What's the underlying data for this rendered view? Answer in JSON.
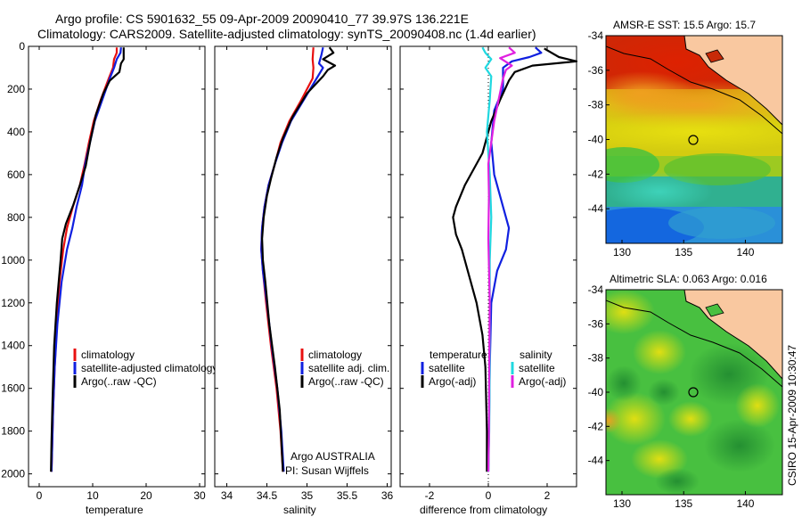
{
  "title": {
    "line1": "Argo profile: CS 5901632_55 09-Apr-2009 20090410_77 39.97S 136.221E",
    "line2": "Climatology: CARS2009. Satellite-adjusted climatology: synTS_20090408.nc (1.4d earlier)"
  },
  "colors": {
    "climatology": "#e81010",
    "satellite": "#1020e0",
    "argo": "#000000",
    "sat_salinity": "#20d8e0",
    "argo_salinity": "#e020e0"
  },
  "chart_data": [
    {
      "id": "temperature",
      "type": "line",
      "xlabel": "temperature",
      "xlim": [
        -2,
        31
      ],
      "xticks": [
        0,
        10,
        20,
        30
      ],
      "ylim": [
        2060,
        0
      ],
      "yticks": [
        0,
        200,
        400,
        600,
        800,
        1000,
        1200,
        1400,
        1600,
        1800,
        2000
      ],
      "legend": [
        "climatology",
        "satellite-adjusted climatology",
        "Argo(..raw -QC)"
      ],
      "series": [
        {
          "name": "climatology",
          "color": "#e81010",
          "points": [
            [
              14.5,
              5
            ],
            [
              14.5,
              30
            ],
            [
              14.0,
              60
            ],
            [
              13.8,
              100
            ],
            [
              13.0,
              150
            ],
            [
              11.5,
              250
            ],
            [
              10.2,
              350
            ],
            [
              9.3,
              450
            ],
            [
              8.5,
              550
            ],
            [
              7.6,
              650
            ],
            [
              6.3,
              750
            ],
            [
              5.2,
              850
            ],
            [
              4.5,
              950
            ],
            [
              3.8,
              1100
            ],
            [
              3.3,
              1300
            ],
            [
              2.9,
              1500
            ],
            [
              2.6,
              1700
            ],
            [
              2.4,
              1900
            ],
            [
              2.3,
              1990
            ]
          ]
        },
        {
          "name": "satellite-adjusted climatology",
          "color": "#1020e0",
          "points": [
            [
              15.3,
              5
            ],
            [
              15.2,
              30
            ],
            [
              14.5,
              60
            ],
            [
              14.0,
              100
            ],
            [
              13.2,
              150
            ],
            [
              11.8,
              250
            ],
            [
              10.4,
              350
            ],
            [
              9.5,
              450
            ],
            [
              8.6,
              550
            ],
            [
              8.0,
              650
            ],
            [
              7.0,
              750
            ],
            [
              6.2,
              850
            ],
            [
              5.2,
              950
            ],
            [
              4.2,
              1100
            ],
            [
              3.4,
              1300
            ],
            [
              2.9,
              1500
            ],
            [
              2.6,
              1700
            ],
            [
              2.4,
              1900
            ],
            [
              2.3,
              1990
            ]
          ]
        },
        {
          "name": "Argo(..raw -QC)",
          "color": "#000000",
          "points": [
            [
              15.8,
              5
            ],
            [
              15.8,
              60
            ],
            [
              15.3,
              80
            ],
            [
              15.0,
              120
            ],
            [
              13.2,
              160
            ],
            [
              12.0,
              220
            ],
            [
              10.6,
              320
            ],
            [
              9.5,
              450
            ],
            [
              8.7,
              560
            ],
            [
              7.6,
              650
            ],
            [
              6.4,
              740
            ],
            [
              5.0,
              830
            ],
            [
              4.3,
              900
            ],
            [
              4.0,
              1000
            ],
            [
              3.3,
              1200
            ],
            [
              2.8,
              1400
            ],
            [
              2.5,
              1650
            ],
            [
              2.3,
              1850
            ],
            [
              2.2,
              1990
            ]
          ]
        }
      ]
    },
    {
      "id": "salinity",
      "type": "line",
      "xlabel": "salinity",
      "xlim": [
        33.85,
        36.05
      ],
      "xticks": [
        34,
        34.5,
        35,
        35.5,
        36
      ],
      "ylim": [
        2060,
        0
      ],
      "legend": [
        "climatology",
        "satellite adj. clim.",
        "Argo(..raw -QC)"
      ],
      "annotations": [
        "Argo AUSTRALIA",
        "PI: Susan Wijffels"
      ],
      "series": [
        {
          "name": "climatology",
          "color": "#e81010",
          "points": [
            [
              35.08,
              5
            ],
            [
              35.07,
              60
            ],
            [
              35.08,
              100
            ],
            [
              35.07,
              150
            ],
            [
              34.93,
              250
            ],
            [
              34.78,
              350
            ],
            [
              34.67,
              450
            ],
            [
              34.6,
              550
            ],
            [
              34.52,
              650
            ],
            [
              34.47,
              750
            ],
            [
              34.44,
              850
            ],
            [
              34.43,
              950
            ],
            [
              34.45,
              1050
            ],
            [
              34.49,
              1200
            ],
            [
              34.55,
              1400
            ],
            [
              34.62,
              1600
            ],
            [
              34.67,
              1800
            ],
            [
              34.7,
              1990
            ]
          ]
        },
        {
          "name": "satellite adj. clim.",
          "color": "#1020e0",
          "points": [
            [
              35.2,
              5
            ],
            [
              35.18,
              40
            ],
            [
              35.15,
              80
            ],
            [
              35.2,
              100
            ],
            [
              35.12,
              150
            ],
            [
              34.96,
              250
            ],
            [
              34.8,
              350
            ],
            [
              34.69,
              450
            ],
            [
              34.6,
              550
            ],
            [
              34.52,
              650
            ],
            [
              34.47,
              750
            ],
            [
              34.44,
              850
            ],
            [
              34.43,
              950
            ],
            [
              34.45,
              1050
            ],
            [
              34.5,
              1200
            ],
            [
              34.56,
              1400
            ],
            [
              34.63,
              1600
            ],
            [
              34.68,
              1800
            ],
            [
              34.71,
              1990
            ]
          ]
        },
        {
          "name": "Argo(..raw -QC)",
          "color": "#000000",
          "points": [
            [
              35.28,
              5
            ],
            [
              35.33,
              30
            ],
            [
              35.2,
              60
            ],
            [
              35.35,
              90
            ],
            [
              35.26,
              110
            ],
            [
              35.2,
              140
            ],
            [
              35.0,
              220
            ],
            [
              34.82,
              330
            ],
            [
              34.7,
              430
            ],
            [
              34.62,
              520
            ],
            [
              34.55,
              620
            ],
            [
              34.5,
              700
            ],
            [
              34.46,
              800
            ],
            [
              34.44,
              900
            ],
            [
              34.45,
              1000
            ],
            [
              34.48,
              1100
            ],
            [
              34.53,
              1300
            ],
            [
              34.6,
              1500
            ],
            [
              34.66,
              1700
            ],
            [
              34.7,
              1990
            ]
          ]
        }
      ]
    },
    {
      "id": "difference",
      "type": "line",
      "xlabel": "difference from climatology",
      "xlim": [
        -3,
        3
      ],
      "xticks": [
        -2,
        0,
        2
      ],
      "ylim": [
        2060,
        0
      ],
      "legend_temperature": {
        "header": "temperature",
        "items": [
          "satellite",
          "Argo(-adj)"
        ]
      },
      "legend_salinity": {
        "header": "salinity",
        "items": [
          "satellite",
          "Argo(-adj)"
        ]
      },
      "series": [
        {
          "name": "temperature satellite",
          "color": "#1020e0",
          "points": [
            [
              1.6,
              5
            ],
            [
              1.8,
              30
            ],
            [
              1.4,
              50
            ],
            [
              0.8,
              70
            ],
            [
              0.5,
              100
            ],
            [
              0.5,
              200
            ],
            [
              0.2,
              300
            ],
            [
              0.1,
              450
            ],
            [
              0.2,
              600
            ],
            [
              0.5,
              750
            ],
            [
              0.7,
              850
            ],
            [
              0.6,
              950
            ],
            [
              0.3,
              1050
            ],
            [
              0.1,
              1200
            ],
            [
              0.05,
              1500
            ],
            [
              0.02,
              1800
            ],
            [
              0.0,
              1990
            ]
          ]
        },
        {
          "name": "temperature Argo(-adj)",
          "color": "#000000",
          "points": [
            [
              1.9,
              10
            ],
            [
              2.4,
              50
            ],
            [
              3.0,
              70
            ],
            [
              1.5,
              90
            ],
            [
              0.9,
              120
            ],
            [
              0.7,
              160
            ],
            [
              0.4,
              250
            ],
            [
              0.1,
              350
            ],
            [
              -0.2,
              500
            ],
            [
              -0.8,
              650
            ],
            [
              -1.1,
              750
            ],
            [
              -1.2,
              800
            ],
            [
              -1.1,
              880
            ],
            [
              -0.9,
              950
            ],
            [
              -0.7,
              1050
            ],
            [
              -0.4,
              1200
            ],
            [
              -0.2,
              1350
            ],
            [
              -0.1,
              1500
            ],
            [
              -0.05,
              1800
            ],
            [
              -0.05,
              1990
            ]
          ]
        },
        {
          "name": "salinity satellite",
          "color": "#20d8e0",
          "points": [
            [
              -0.2,
              5
            ],
            [
              -0.1,
              30
            ],
            [
              0.1,
              60
            ],
            [
              -0.1,
              100
            ],
            [
              0.1,
              140
            ],
            [
              0.05,
              250
            ],
            [
              -0.05,
              400
            ],
            [
              0.05,
              600
            ],
            [
              0.1,
              800
            ],
            [
              0.05,
              1000
            ],
            [
              0.05,
              1200
            ],
            [
              0.05,
              1500
            ],
            [
              0.03,
              1800
            ],
            [
              0.0,
              1990
            ]
          ]
        },
        {
          "name": "salinity Argo(-adj)",
          "color": "#e020e0",
          "points": [
            [
              0.7,
              5
            ],
            [
              0.9,
              30
            ],
            [
              0.4,
              55
            ],
            [
              0.8,
              90
            ],
            [
              0.6,
              110
            ],
            [
              0.5,
              150
            ],
            [
              0.35,
              250
            ],
            [
              0.2,
              350
            ],
            [
              0.1,
              450
            ],
            [
              0.0,
              550
            ],
            [
              0.02,
              700
            ],
            [
              0.0,
              900
            ],
            [
              0.05,
              1200
            ],
            [
              0.03,
              1500
            ],
            [
              0.02,
              1800
            ],
            [
              0.0,
              1990
            ]
          ]
        }
      ]
    },
    {
      "id": "sst_map",
      "type": "heatmap",
      "title": "AMSR-E SST: 15.5 Argo: 15.7",
      "xlim": [
        128.7,
        143
      ],
      "ylim": [
        -46,
        -34
      ],
      "xticks": [
        130,
        135,
        140
      ],
      "yticks": [
        -34,
        -36,
        -38,
        -40,
        -42,
        -44
      ],
      "argo_position": [
        136.22,
        -39.97
      ]
    },
    {
      "id": "sla_map",
      "type": "heatmap",
      "title": "Altimetric SLA: 0.063 Argo: 0.016",
      "xlim": [
        128.7,
        143
      ],
      "ylim": [
        -46,
        -34
      ],
      "xticks": [
        130,
        135,
        140
      ],
      "yticks": [
        -34,
        -36,
        -38,
        -40,
        -42,
        -44
      ],
      "argo_position": [
        136.22,
        -39.97
      ]
    }
  ],
  "credit": "CSIRO 15-Apr-2009 10:30:47"
}
